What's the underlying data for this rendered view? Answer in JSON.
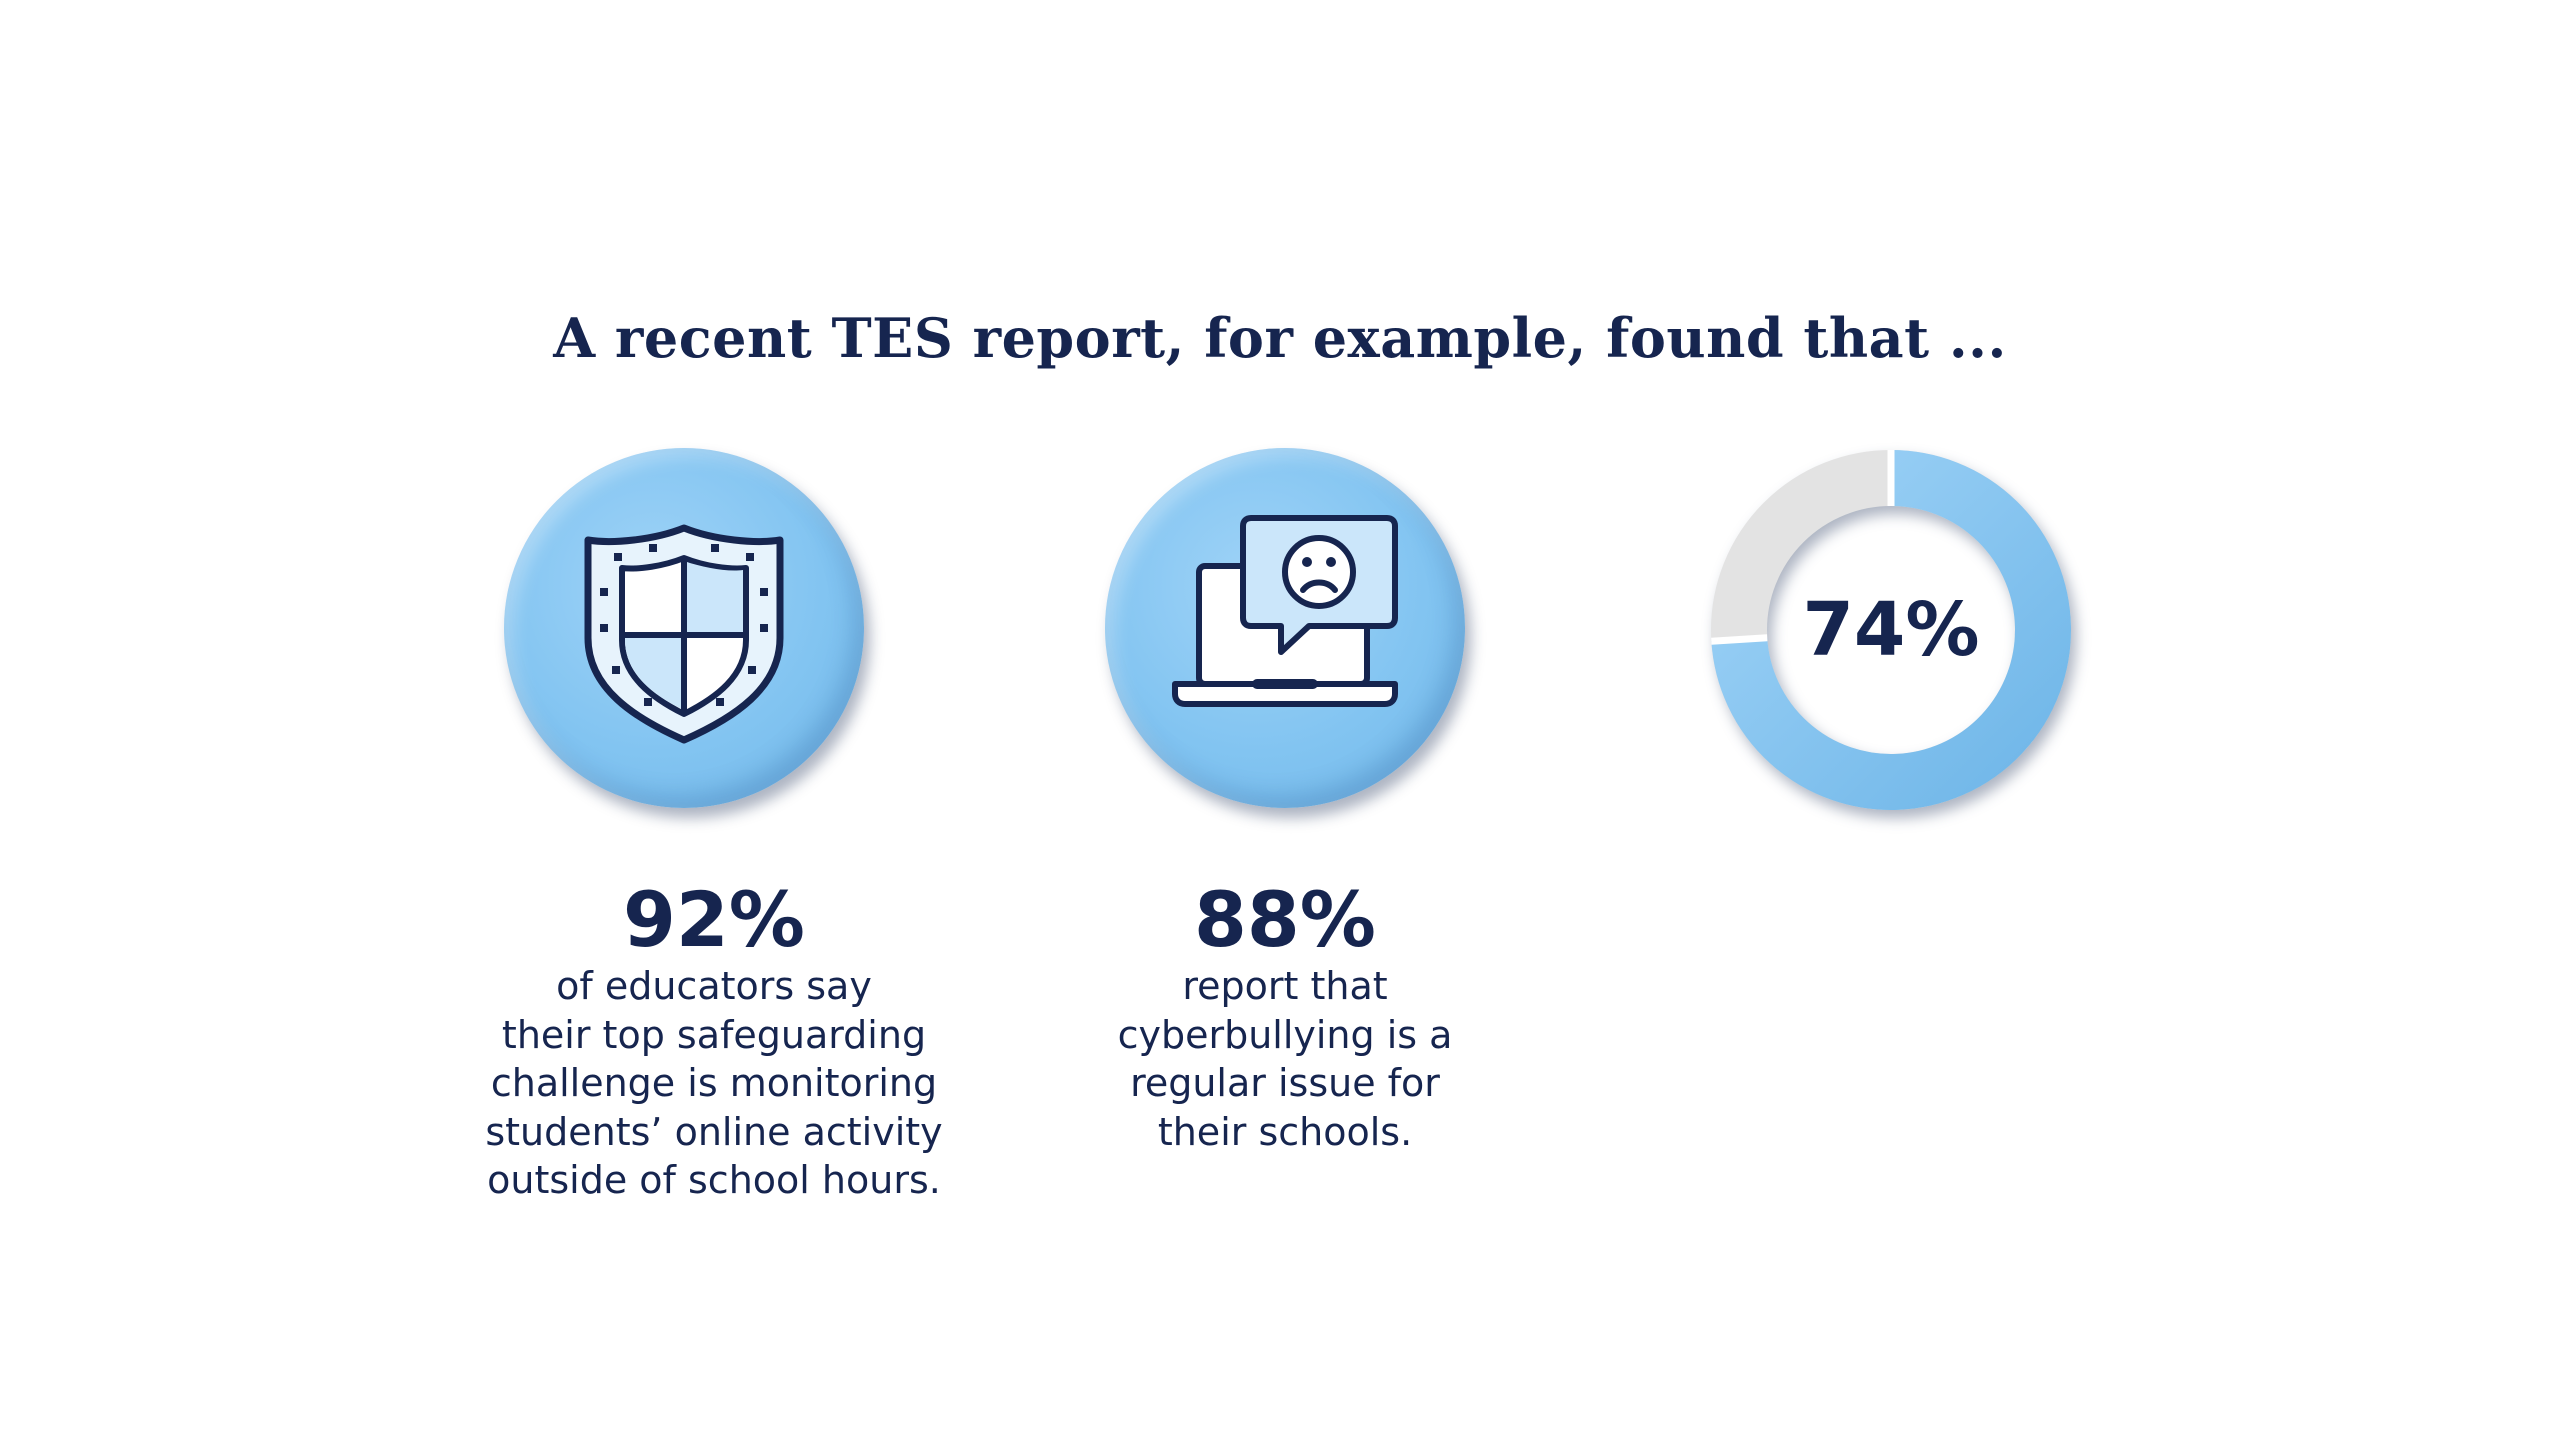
{
  "headline": "A recent TES report, for example, found that ...",
  "colors": {
    "navy": "#16254f",
    "medallion_blue": "#82c4f1",
    "icon_fill_light": "#cbe6fa",
    "donut_track": "#e3e3e3",
    "background": "#ffffff"
  },
  "stats": [
    {
      "icon": "shield-icon",
      "value": "92%",
      "fraction": 0.92,
      "lines": [
        "of educators say",
        "their top safeguarding",
        "challenge is monitoring",
        "students’ online activity",
        "outside of school hours."
      ]
    },
    {
      "icon": "laptop-sad-chat-icon",
      "value": "88%",
      "fraction": 0.88,
      "lines": [
        "report that",
        "cyberbullying is a",
        "regular issue for",
        "their schools."
      ]
    },
    {
      "icon": "donut-chart",
      "value": "74%",
      "fraction": 0.74
    }
  ]
}
